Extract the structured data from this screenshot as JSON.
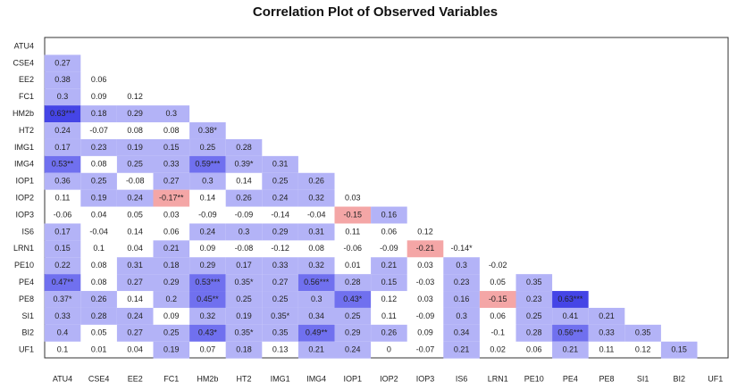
{
  "chart_data": {
    "type": "heatmap",
    "title": "Correlation Plot of Observed Variables",
    "y_categories": [
      "ATU4",
      "CSE4",
      "EE2",
      "FC1",
      "HM2b",
      "HT2",
      "IMG1",
      "IMG4",
      "IOP1",
      "IOP2",
      "IOP3",
      "IS6",
      "LRN1",
      "PE10",
      "PE4",
      "PE8",
      "SI1",
      "BI2",
      "UF1"
    ],
    "x_categories": [
      "ATU4",
      "CSE4",
      "EE2",
      "FC1",
      "HM2b",
      "HT2",
      "IMG1",
      "IMG4",
      "IOP1",
      "IOP2",
      "IOP3",
      "IS6",
      "LRN1",
      "PE10",
      "PE4",
      "PE8",
      "SI1",
      "BI2",
      "UF1"
    ],
    "values": [
      [],
      [
        0.27
      ],
      [
        0.38,
        0.06
      ],
      [
        0.3,
        0.09,
        0.12
      ],
      [
        0.63,
        0.18,
        0.29,
        0.3
      ],
      [
        0.24,
        -0.07,
        0.08,
        0.08,
        0.38
      ],
      [
        0.17,
        0.23,
        0.19,
        0.15,
        0.25,
        0.28
      ],
      [
        0.53,
        0.08,
        0.25,
        0.33,
        0.59,
        0.39,
        0.31
      ],
      [
        0.36,
        0.25,
        -0.08,
        0.27,
        0.3,
        0.14,
        0.25,
        0.26
      ],
      [
        0.11,
        0.19,
        0.24,
        -0.17,
        0.14,
        0.26,
        0.24,
        0.32,
        0.03
      ],
      [
        -0.06,
        0.04,
        0.05,
        0.03,
        -0.09,
        -0.09,
        -0.14,
        -0.04,
        -0.15,
        0.16
      ],
      [
        0.17,
        -0.04,
        0.14,
        0.06,
        0.24,
        0.3,
        0.29,
        0.31,
        0.11,
        0.06,
        0.12
      ],
      [
        0.15,
        0.1,
        0.04,
        0.21,
        0.09,
        -0.08,
        -0.12,
        0.08,
        -0.06,
        -0.09,
        -0.21,
        -0.14
      ],
      [
        0.22,
        0.08,
        0.31,
        0.18,
        0.29,
        0.17,
        0.33,
        0.32,
        0.01,
        0.21,
        0.03,
        0.3,
        -0.02
      ],
      [
        0.47,
        0.08,
        0.27,
        0.29,
        0.53,
        0.35,
        0.27,
        0.56,
        0.28,
        0.15,
        -0.03,
        0.23,
        0.05,
        0.35
      ],
      [
        0.37,
        0.26,
        0.14,
        0.2,
        0.45,
        0.25,
        0.25,
        0.3,
        0.43,
        0.12,
        0.03,
        0.16,
        -0.15,
        0.23,
        0.63
      ],
      [
        0.33,
        0.28,
        0.24,
        0.09,
        0.32,
        0.19,
        0.35,
        0.34,
        0.25,
        0.11,
        -0.09,
        0.3,
        0.06,
        0.25,
        0.41,
        0.21
      ],
      [
        0.4,
        0.05,
        0.27,
        0.25,
        0.43,
        0.35,
        0.35,
        0.49,
        0.29,
        0.26,
        0.09,
        0.34,
        -0.1,
        0.28,
        0.56,
        0.33,
        0.35
      ],
      [
        0.1,
        0.01,
        0.04,
        0.19,
        0.07,
        0.18,
        0.13,
        0.21,
        0.24,
        0,
        -0.07,
        0.21,
        0.02,
        0.06,
        0.21,
        0.11,
        0.12,
        0.15
      ]
    ],
    "value_labels": [
      [],
      [
        "0.27"
      ],
      [
        "0.38",
        "0.06"
      ],
      [
        "0.3",
        "0.09",
        "0.12"
      ],
      [
        "0.63***",
        "0.18",
        "0.29",
        "0.3"
      ],
      [
        "0.24",
        "-0.07",
        "0.08",
        "0.08",
        "0.38*"
      ],
      [
        "0.17",
        "0.23",
        "0.19",
        "0.15",
        "0.25",
        "0.28"
      ],
      [
        "0.53**",
        "0.08",
        "0.25",
        "0.33",
        "0.59***",
        "0.39*",
        "0.31"
      ],
      [
        "0.36",
        "0.25",
        "-0.08",
        "0.27",
        "0.3",
        "0.14",
        "0.25",
        "0.26"
      ],
      [
        "0.11",
        "0.19",
        "0.24",
        "-0.17**",
        "0.14",
        "0.26",
        "0.24",
        "0.32",
        "0.03"
      ],
      [
        "-0.06",
        "0.04",
        "0.05",
        "0.03",
        "-0.09",
        "-0.09",
        "-0.14",
        "-0.04",
        "-0.15",
        "0.16"
      ],
      [
        "0.17",
        "-0.04",
        "0.14",
        "0.06",
        "0.24",
        "0.3",
        "0.29",
        "0.31",
        "0.11",
        "0.06",
        "0.12"
      ],
      [
        "0.15",
        "0.1",
        "0.04",
        "0.21",
        "0.09",
        "-0.08",
        "-0.12",
        "0.08",
        "-0.06",
        "-0.09",
        "-0.21",
        "-0.14*"
      ],
      [
        "0.22",
        "0.08",
        "0.31",
        "0.18",
        "0.29",
        "0.17",
        "0.33",
        "0.32",
        "0.01",
        "0.21",
        "0.03",
        "0.3",
        "-0.02"
      ],
      [
        "0.47**",
        "0.08",
        "0.27",
        "0.29",
        "0.53***",
        "0.35*",
        "0.27",
        "0.56***",
        "0.28",
        "0.15",
        "-0.03",
        "0.23",
        "0.05",
        "0.35"
      ],
      [
        "0.37*",
        "0.26",
        "0.14",
        "0.2",
        "0.45**",
        "0.25",
        "0.25",
        "0.3",
        "0.43*",
        "0.12",
        "0.03",
        "0.16",
        "-0.15",
        "0.23",
        "0.63***"
      ],
      [
        "0.33",
        "0.28",
        "0.24",
        "0.09",
        "0.32",
        "0.19",
        "0.35*",
        "0.34",
        "0.25",
        "0.11",
        "-0.09",
        "0.3",
        "0.06",
        "0.25",
        "0.41",
        "0.21"
      ],
      [
        "0.4",
        "0.05",
        "0.27",
        "0.25",
        "0.43*",
        "0.35*",
        "0.35",
        "0.49**",
        "0.29",
        "0.26",
        "0.09",
        "0.34",
        "-0.1",
        "0.28",
        "0.56***",
        "0.33",
        "0.35"
      ],
      [
        "0.1",
        "0.01",
        "0.04",
        "0.19",
        "0.07",
        "0.18",
        "0.13",
        "0.21",
        "0.24",
        "0",
        "-0.07",
        "0.21",
        "0.02",
        "0.06",
        "0.21",
        "0.11",
        "0.12",
        "0.15"
      ]
    ],
    "colors": {
      "negative": "#f4a6a6",
      "weak": "#b3b3f7",
      "moderate": "#7070ef",
      "strong": "#4545e6"
    }
  }
}
